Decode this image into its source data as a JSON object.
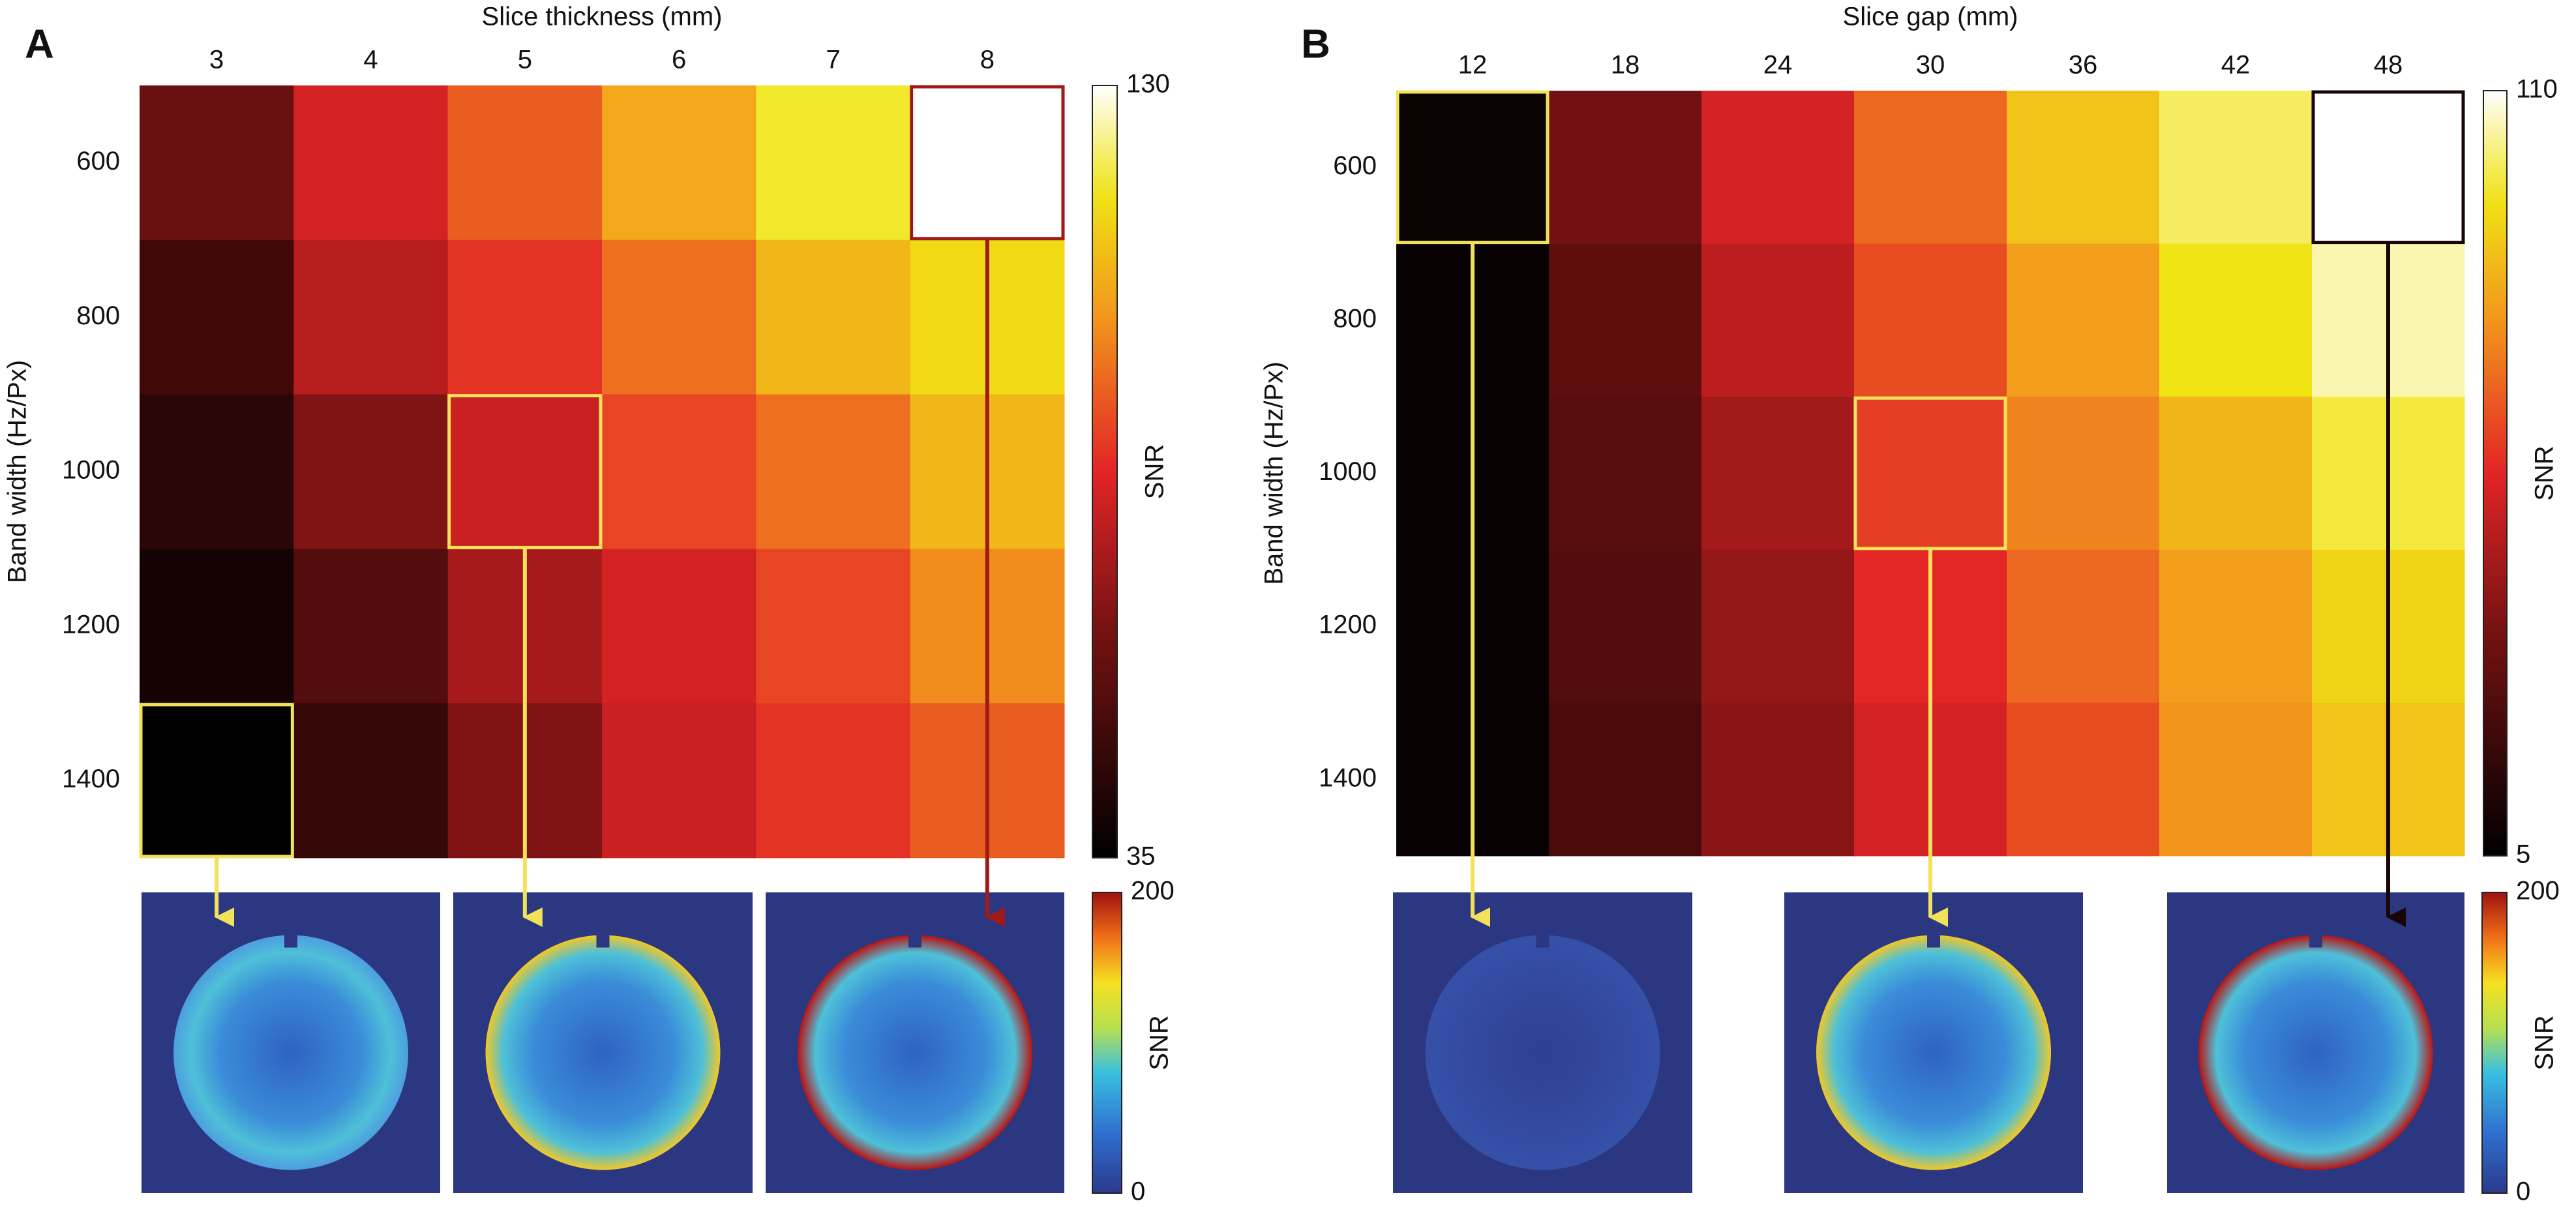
{
  "chart_data": [
    {
      "type": "heatmap",
      "panel_label": "A",
      "x_label": "Slice thickness (mm)",
      "y_label": "Band width (Hz/Px)",
      "categories": [
        "3",
        "4",
        "5",
        "6",
        "7",
        "8"
      ],
      "y_categories": [
        "600",
        "800",
        "1000",
        "1200",
        "1400"
      ],
      "values": [
        [
          60,
          80,
          92,
          105,
          118,
          130
        ],
        [
          50,
          75,
          85,
          95,
          108,
          115
        ],
        [
          45,
          65,
          78,
          88,
          95,
          108
        ],
        [
          40,
          55,
          72,
          80,
          88,
          100
        ],
        [
          35,
          48,
          65,
          78,
          85,
          92
        ]
      ],
      "colorbar_label": "SNR",
      "zlim": [
        35,
        130
      ],
      "zticks": [
        35,
        130
      ],
      "highlight_cells": [
        {
          "x": "3",
          "y": "1400",
          "color": "#f2e25a"
        },
        {
          "x": "5",
          "y": "1000",
          "color": "#f2e25a"
        },
        {
          "x": "8",
          "y": "600",
          "color": "#a11a1a"
        }
      ],
      "inset_colorbar": {
        "label": "SNR",
        "zlim": [
          0,
          200
        ],
        "zticks": [
          0,
          200
        ]
      }
    },
    {
      "type": "heatmap",
      "panel_label": "B",
      "x_label": "Slice gap (mm)",
      "y_label": "Band width (Hz/Px)",
      "categories": [
        "12",
        "18",
        "24",
        "30",
        "36",
        "42",
        "48"
      ],
      "y_categories": [
        "600",
        "800",
        "1000",
        "1200",
        "1400"
      ],
      "values": [
        [
          8,
          35,
          55,
          70,
          88,
          100,
          110
        ],
        [
          7,
          30,
          50,
          65,
          80,
          95,
          105
        ],
        [
          7,
          28,
          45,
          62,
          75,
          85,
          98
        ],
        [
          7,
          27,
          42,
          58,
          70,
          80,
          92
        ],
        [
          7,
          25,
          40,
          55,
          65,
          78,
          88
        ]
      ],
      "colorbar_label": "SNR",
      "zlim": [
        5,
        110
      ],
      "zticks": [
        5,
        110
      ],
      "highlight_cells": [
        {
          "x": "12",
          "y": "600",
          "color": "#f2e25a"
        },
        {
          "x": "30",
          "y": "1000",
          "color": "#f2e25a"
        },
        {
          "x": "48",
          "y": "600",
          "color": "#1a0505"
        }
      ],
      "inset_colorbar": {
        "label": "SNR",
        "zlim": [
          0,
          200
        ],
        "zticks": [
          0,
          200
        ]
      }
    }
  ]
}
